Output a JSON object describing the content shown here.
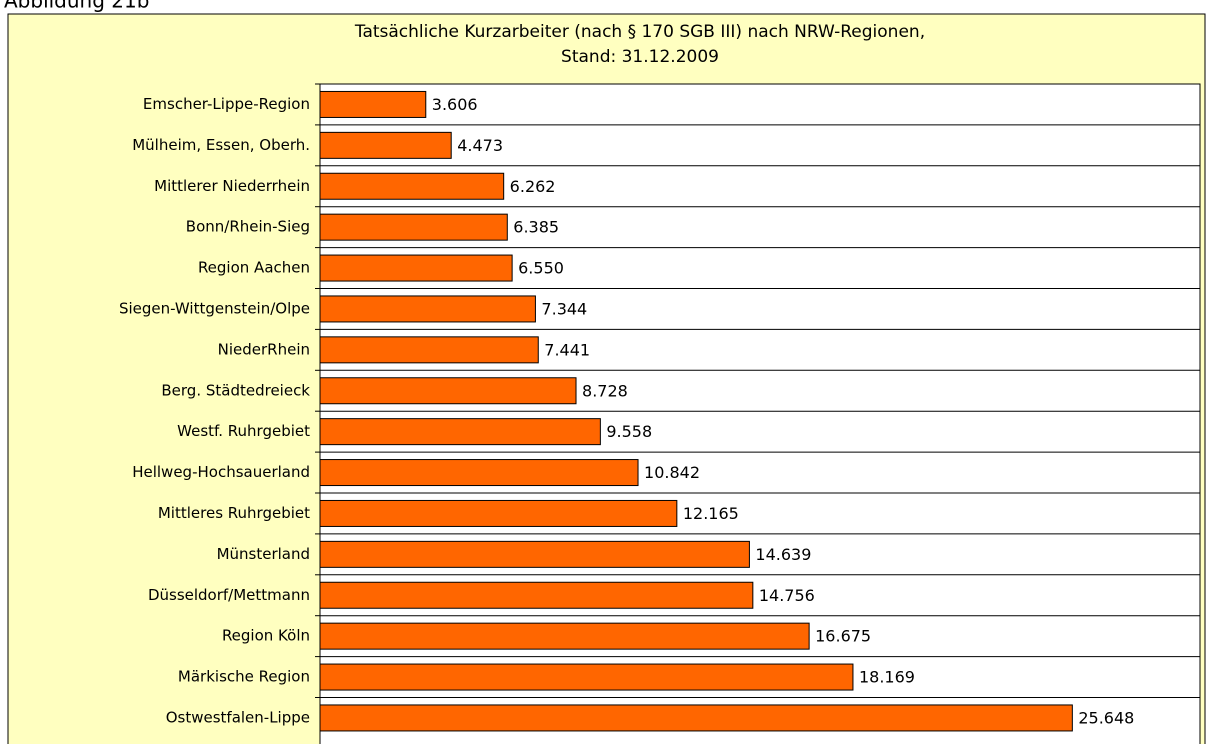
{
  "header": "Abbildung 21b",
  "chart_data": {
    "type": "hbar",
    "title": [
      "Tatsächliche Kurzarbeiter (nach § 170 SGB III) nach NRW-Regionen,",
      "Stand: 31.12.2009"
    ],
    "categories": [
      "Emscher-Lippe-Region",
      "Mülheim, Essen, Oberh.",
      "Mittlerer Niederrhein",
      "Bonn/Rhein-Sieg",
      "Region Aachen",
      "Siegen-Wittgenstein/Olpe",
      "NiederRhein",
      "Berg. Städtedreieck",
      "Westf. Ruhrgebiet",
      "Hellweg-Hochsauerland",
      "Mittleres Ruhrgebiet",
      "Münsterland",
      "Düsseldorf/Mettmann",
      "Region Köln",
      "Märkische Region",
      "Ostwestfalen-Lippe"
    ],
    "values": [
      3606,
      4473,
      6262,
      6385,
      6550,
      7344,
      7441,
      8728,
      9558,
      10842,
      12165,
      14639,
      14756,
      16675,
      18169,
      25648
    ],
    "value_labels": [
      "3.606",
      "4.473",
      "6.262",
      "6.385",
      "6.550",
      "7.344",
      "7.441",
      "8.728",
      "9.558",
      "10.842",
      "12.165",
      "14.639",
      "14.756",
      "16.675",
      "18.169",
      "25.648"
    ],
    "color": "#ff6600",
    "xlim": [
      0,
      30000
    ],
    "grid": true
  }
}
